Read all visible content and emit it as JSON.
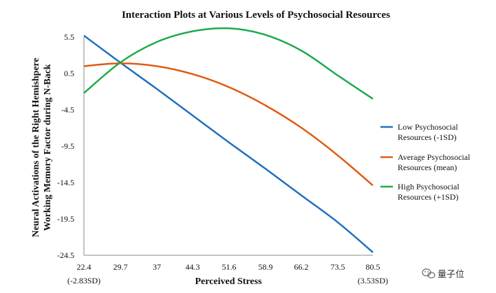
{
  "chart_data": {
    "type": "line",
    "title": "Interaction Plots at Various Levels of Psychosocial Resources",
    "xlabel": "Perceived Stress",
    "ylabel_lines": [
      "Neural Activations of the Right Hemishpere",
      "Working Memory Factor during N-Back"
    ],
    "x_ticks": [
      "22.4",
      "29.7",
      "37",
      "44.3",
      "51.6",
      "58.9",
      "66.2",
      "73.5",
      "80.5"
    ],
    "x_tick_values": [
      22.4,
      29.7,
      37,
      44.3,
      51.6,
      58.9,
      66.2,
      73.5,
      80.5
    ],
    "x_subtick_left": "(-2.83SD)",
    "x_subtick_right": "(3.53SD)",
    "y_ticks": [
      "5.5",
      "0.5",
      "-4.5",
      "-9.5",
      "-14.5",
      "-19.5",
      "-24.5"
    ],
    "y_tick_values": [
      5.5,
      0.5,
      -4.5,
      -9.5,
      -14.5,
      -19.5,
      -24.5
    ],
    "xlim": [
      22.4,
      80.5
    ],
    "ylim": [
      -24.5,
      5.5
    ],
    "series": [
      {
        "name": "Low Psychosocial Resources (-1SD)",
        "legend_lines": [
          "Low Psychosocial",
          "Resources (-1SD)"
        ],
        "color": "#1f6fbf",
        "x": [
          22.4,
          29.7,
          37,
          44.3,
          51.6,
          58.9,
          66.2,
          73.5,
          80.5
        ],
        "y": [
          5.7,
          2.0,
          -1.6,
          -5.3,
          -9.0,
          -12.6,
          -16.3,
          -20.0,
          -24.1
        ]
      },
      {
        "name": "Average Psychosocial Resources (mean)",
        "legend_lines": [
          "Average Psychosocial",
          "Resources (mean)"
        ],
        "color": "#e05a10",
        "x": [
          22.4,
          29.7,
          37,
          44.3,
          51.6,
          58.9,
          66.2,
          73.5,
          80.5
        ],
        "y": [
          1.5,
          1.9,
          1.5,
          0.4,
          -1.4,
          -3.9,
          -7.0,
          -10.8,
          -14.9
        ]
      },
      {
        "name": "High Psychosocial Resources (+1SD)",
        "legend_lines": [
          "High Psychosocial",
          "Resources (+1SD)"
        ],
        "color": "#1aab4a",
        "x": [
          22.4,
          29.7,
          37,
          44.3,
          51.6,
          58.9,
          66.2,
          73.5,
          80.5
        ],
        "y": [
          -2.2,
          2.0,
          4.8,
          6.3,
          6.7,
          5.8,
          3.6,
          0.2,
          -3.0
        ]
      }
    ]
  },
  "watermark": {
    "text": "量子位",
    "icon": "wechat-icon"
  }
}
